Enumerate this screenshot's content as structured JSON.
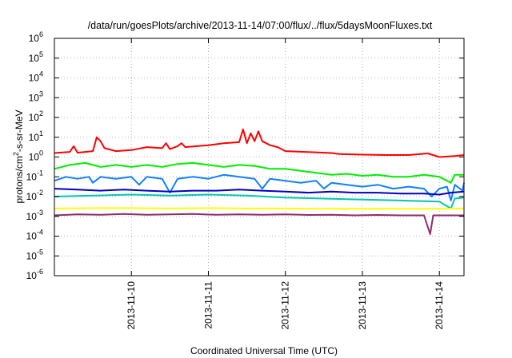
{
  "chart_data": {
    "type": "line",
    "title": "/data/run/goesPlots/archive/2013-11-14/07:00/flux/../flux/5daysMoonFluxes.txt",
    "xlabel": "Coordinated Universal Time (UTC)",
    "ylabel": {
      "base": "protons/cm",
      "sup": "2",
      "rest": "-s-sr-MeV"
    },
    "y_scale": "log",
    "ylim": [
      -6,
      6
    ],
    "xlim": [
      0,
      5.32
    ],
    "grid": true,
    "legend": "none",
    "y_ticks": [
      {
        "base": "10",
        "exp": "-6",
        "value": -6
      },
      {
        "base": "10",
        "exp": "-5",
        "value": -5
      },
      {
        "base": "10",
        "exp": "-4",
        "value": -4
      },
      {
        "base": "10",
        "exp": "-3",
        "value": -3
      },
      {
        "base": "10",
        "exp": "-2",
        "value": -2
      },
      {
        "base": "10",
        "exp": "-1",
        "value": -1
      },
      {
        "base": "10",
        "exp": "0",
        "value": 0
      },
      {
        "base": "10",
        "exp": "1",
        "value": 1
      },
      {
        "base": "10",
        "exp": "2",
        "value": 2
      },
      {
        "base": "10",
        "exp": "3",
        "value": 3
      },
      {
        "base": "10",
        "exp": "4",
        "value": 4
      },
      {
        "base": "10",
        "exp": "5",
        "value": 5
      },
      {
        "base": "10",
        "exp": "6",
        "value": 6
      }
    ],
    "x_ticks": [
      {
        "label": "2013-11-10",
        "value": 1
      },
      {
        "label": "2013-11-11",
        "value": 2
      },
      {
        "label": "2013-11-12",
        "value": 3
      },
      {
        "label": "2013-11-13",
        "value": 4
      },
      {
        "label": "2013-11-14",
        "value": 5
      }
    ],
    "series": [
      {
        "color": "#ff0000",
        "points": [
          [
            0.0,
            0.2
          ],
          [
            0.2,
            0.26
          ],
          [
            0.25,
            0.55
          ],
          [
            0.3,
            0.22
          ],
          [
            0.5,
            0.3
          ],
          [
            0.55,
            1.0
          ],
          [
            0.6,
            0.8
          ],
          [
            0.65,
            0.45
          ],
          [
            0.8,
            0.3
          ],
          [
            1.0,
            0.35
          ],
          [
            1.2,
            0.5
          ],
          [
            1.4,
            0.45
          ],
          [
            1.45,
            0.7
          ],
          [
            1.5,
            0.4
          ],
          [
            1.6,
            0.55
          ],
          [
            1.65,
            0.7
          ],
          [
            1.7,
            0.5
          ],
          [
            2.0,
            0.6
          ],
          [
            2.2,
            0.7
          ],
          [
            2.4,
            0.75
          ],
          [
            2.45,
            1.4
          ],
          [
            2.5,
            0.7
          ],
          [
            2.55,
            1.2
          ],
          [
            2.6,
            0.8
          ],
          [
            2.65,
            1.3
          ],
          [
            2.7,
            0.8
          ],
          [
            2.8,
            0.6
          ],
          [
            2.9,
            0.5
          ],
          [
            3.0,
            0.3
          ],
          [
            3.3,
            0.25
          ],
          [
            3.6,
            0.2
          ],
          [
            3.7,
            0.15
          ],
          [
            4.0,
            0.12
          ],
          [
            4.3,
            0.1
          ],
          [
            4.6,
            0.1
          ],
          [
            4.85,
            0.18
          ],
          [
            5.0,
            0.0
          ],
          [
            5.2,
            0.05
          ],
          [
            5.32,
            0.1
          ]
        ]
      },
      {
        "color": "#00ee00",
        "points": [
          [
            0.0,
            -0.6
          ],
          [
            0.2,
            -0.4
          ],
          [
            0.4,
            -0.3
          ],
          [
            0.6,
            -0.5
          ],
          [
            0.8,
            -0.4
          ],
          [
            1.0,
            -0.5
          ],
          [
            1.2,
            -0.4
          ],
          [
            1.4,
            -0.5
          ],
          [
            1.6,
            -0.35
          ],
          [
            1.8,
            -0.3
          ],
          [
            2.0,
            -0.4
          ],
          [
            2.2,
            -0.5
          ],
          [
            2.4,
            -0.4
          ],
          [
            2.6,
            -0.45
          ],
          [
            2.8,
            -0.6
          ],
          [
            3.0,
            -0.6
          ],
          [
            3.2,
            -0.7
          ],
          [
            3.4,
            -0.8
          ],
          [
            3.6,
            -0.9
          ],
          [
            3.8,
            -0.85
          ],
          [
            4.0,
            -0.95
          ],
          [
            4.2,
            -0.9
          ],
          [
            4.4,
            -1.0
          ],
          [
            4.6,
            -1.0
          ],
          [
            4.8,
            -0.9
          ],
          [
            5.0,
            -1.0
          ],
          [
            5.15,
            -1.3
          ],
          [
            5.2,
            -0.9
          ],
          [
            5.32,
            -0.9
          ]
        ]
      },
      {
        "color": "#00c8b0",
        "points": [
          [
            0.0,
            -2.0
          ],
          [
            0.5,
            -1.95
          ],
          [
            1.0,
            -1.9
          ],
          [
            1.5,
            -1.95
          ],
          [
            2.0,
            -1.9
          ],
          [
            2.5,
            -1.95
          ],
          [
            3.0,
            -2.05
          ],
          [
            3.5,
            -2.1
          ],
          [
            4.0,
            -2.15
          ],
          [
            4.5,
            -2.2
          ],
          [
            5.0,
            -2.25
          ],
          [
            5.15,
            -2.6
          ],
          [
            5.2,
            -2.1
          ],
          [
            5.32,
            -2.05
          ]
        ]
      },
      {
        "color": "#1080ff",
        "points": [
          [
            0.0,
            -1.2
          ],
          [
            0.15,
            -1.0
          ],
          [
            0.3,
            -1.1
          ],
          [
            0.45,
            -1.0
          ],
          [
            0.5,
            -1.3
          ],
          [
            0.6,
            -1.0
          ],
          [
            0.8,
            -1.1
          ],
          [
            1.0,
            -1.0
          ],
          [
            1.1,
            -1.4
          ],
          [
            1.2,
            -1.0
          ],
          [
            1.4,
            -1.1
          ],
          [
            1.5,
            -1.8
          ],
          [
            1.6,
            -1.1
          ],
          [
            1.8,
            -1.0
          ],
          [
            2.0,
            -1.1
          ],
          [
            2.2,
            -0.9
          ],
          [
            2.4,
            -1.0
          ],
          [
            2.6,
            -1.1
          ],
          [
            2.7,
            -1.6
          ],
          [
            2.8,
            -1.1
          ],
          [
            3.0,
            -1.2
          ],
          [
            3.2,
            -1.3
          ],
          [
            3.4,
            -1.2
          ],
          [
            3.5,
            -1.6
          ],
          [
            3.6,
            -1.3
          ],
          [
            3.8,
            -1.4
          ],
          [
            4.0,
            -1.5
          ],
          [
            4.2,
            -1.4
          ],
          [
            4.4,
            -1.6
          ],
          [
            4.6,
            -1.5
          ],
          [
            4.8,
            -1.6
          ],
          [
            4.9,
            -2.0
          ],
          [
            5.0,
            -1.6
          ],
          [
            5.1,
            -1.5
          ],
          [
            5.15,
            -2.2
          ],
          [
            5.2,
            -1.4
          ],
          [
            5.3,
            -1.7
          ],
          [
            5.32,
            -1.3
          ]
        ]
      },
      {
        "color": "#0000c0",
        "points": [
          [
            0.0,
            -1.6
          ],
          [
            0.3,
            -1.65
          ],
          [
            0.6,
            -1.7
          ],
          [
            0.9,
            -1.65
          ],
          [
            1.2,
            -1.7
          ],
          [
            1.5,
            -1.75
          ],
          [
            1.8,
            -1.7
          ],
          [
            2.1,
            -1.7
          ],
          [
            2.4,
            -1.65
          ],
          [
            2.7,
            -1.7
          ],
          [
            3.0,
            -1.75
          ],
          [
            3.3,
            -1.8
          ],
          [
            3.6,
            -1.75
          ],
          [
            3.9,
            -1.8
          ],
          [
            4.2,
            -1.8
          ],
          [
            4.5,
            -1.85
          ],
          [
            4.8,
            -1.85
          ],
          [
            5.0,
            -1.9
          ],
          [
            5.15,
            -1.8
          ],
          [
            5.32,
            -1.75
          ]
        ]
      },
      {
        "color": "#ffff00",
        "points": [
          [
            0.0,
            -2.6
          ],
          [
            0.5,
            -2.58
          ],
          [
            1.0,
            -2.58
          ],
          [
            1.5,
            -2.6
          ],
          [
            2.0,
            -2.58
          ],
          [
            2.5,
            -2.6
          ],
          [
            3.0,
            -2.6
          ],
          [
            3.5,
            -2.62
          ],
          [
            4.0,
            -2.62
          ],
          [
            4.5,
            -2.62
          ],
          [
            5.0,
            -2.62
          ],
          [
            5.32,
            -2.6
          ]
        ]
      },
      {
        "color": "#8e2c6e",
        "points": [
          [
            0.0,
            -2.95
          ],
          [
            0.3,
            -2.9
          ],
          [
            0.6,
            -2.92
          ],
          [
            0.9,
            -2.88
          ],
          [
            1.2,
            -2.92
          ],
          [
            1.5,
            -2.9
          ],
          [
            1.8,
            -2.88
          ],
          [
            2.1,
            -2.92
          ],
          [
            2.4,
            -2.9
          ],
          [
            2.7,
            -2.92
          ],
          [
            3.0,
            -2.9
          ],
          [
            3.3,
            -2.93
          ],
          [
            3.6,
            -2.92
          ],
          [
            3.9,
            -2.95
          ],
          [
            4.2,
            -2.93
          ],
          [
            4.5,
            -2.95
          ],
          [
            4.8,
            -2.95
          ],
          [
            4.88,
            -3.9
          ],
          [
            4.92,
            -2.95
          ],
          [
            5.1,
            -2.95
          ],
          [
            5.32,
            -2.95
          ]
        ]
      }
    ]
  }
}
